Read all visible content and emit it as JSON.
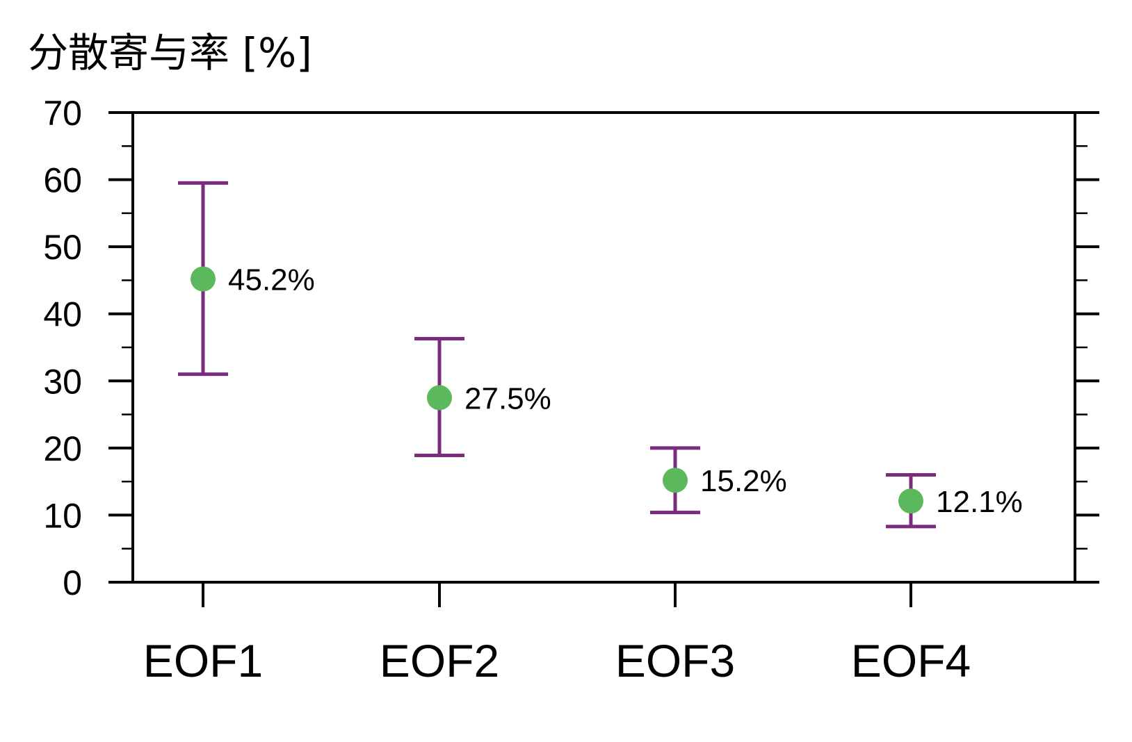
{
  "chart_data": {
    "type": "scatter",
    "title": "分散寄与率 [%]",
    "xlabel": "",
    "ylabel": "",
    "categories": [
      "EOF1",
      "EOF2",
      "EOF3",
      "EOF4"
    ],
    "values": [
      45.2,
      27.5,
      15.2,
      12.1
    ],
    "error_upper": [
      59.5,
      36.3,
      20.0,
      16.0
    ],
    "error_lower": [
      31.0,
      18.9,
      10.4,
      8.3
    ],
    "data_labels": [
      "45.2%",
      "27.5%",
      "15.2%",
      "12.1%"
    ],
    "ylim": [
      0,
      70
    ],
    "yticks": [
      0,
      10,
      20,
      30,
      40,
      50,
      60,
      70
    ],
    "ytick_labels": [
      "0",
      "10",
      "20",
      "30",
      "40",
      "50",
      "60",
      "70"
    ],
    "grid": false,
    "colors": {
      "marker": "#5cb85c",
      "error_bar": "#7b2a7e",
      "axis": "#000000"
    }
  }
}
